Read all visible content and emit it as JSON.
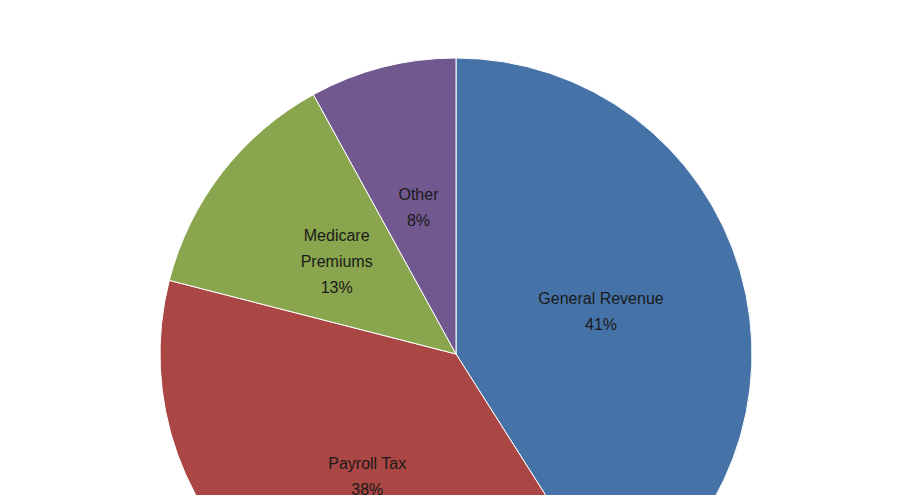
{
  "chart_data": {
    "type": "pie",
    "categories": [
      "General Revenue",
      "Payroll Tax",
      "Medicare Premiums",
      "Other"
    ],
    "values": [
      41,
      38,
      13,
      8
    ],
    "value_labels": [
      "41%",
      "38%",
      "13%",
      "8%"
    ],
    "colors": [
      "#4572a7",
      "#aa4643",
      "#89a54e",
      "#71588f"
    ],
    "data_labels": true
  }
}
